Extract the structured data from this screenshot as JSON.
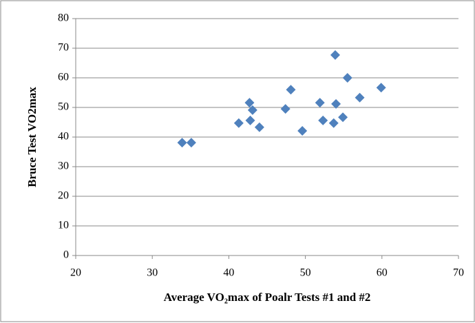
{
  "chart_data": {
    "type": "scatter",
    "x_label": "Average VO₂max of Poalr Tests #1 and #2",
    "y_label": "Bruce Test VO2max",
    "series": [
      {
        "name": "Bruce Test VO2max",
        "color": "#4f81bd",
        "x": [
          33.9,
          35.1,
          41.3,
          44.0,
          42.7,
          42.8,
          43.1,
          47.4,
          48.1,
          49.6,
          51.9,
          52.3,
          53.7,
          53.9,
          54.0,
          54.9,
          55.5,
          57.1,
          59.9
        ],
        "values": [
          38.1,
          38.1,
          44.7,
          43.3,
          51.6,
          45.6,
          49.1,
          49.5,
          56,
          42.1,
          51.6,
          45.6,
          44.7,
          67.7,
          51.2,
          46.7,
          60,
          53.3,
          56.7
        ]
      }
    ],
    "xlim": [
      20,
      70
    ],
    "xticks": [
      20,
      30,
      40,
      50,
      60,
      70
    ],
    "ylim": [
      0,
      80
    ],
    "yticks": [
      0,
      10,
      20,
      30,
      40,
      50,
      60,
      70,
      80
    ],
    "grid": true
  }
}
